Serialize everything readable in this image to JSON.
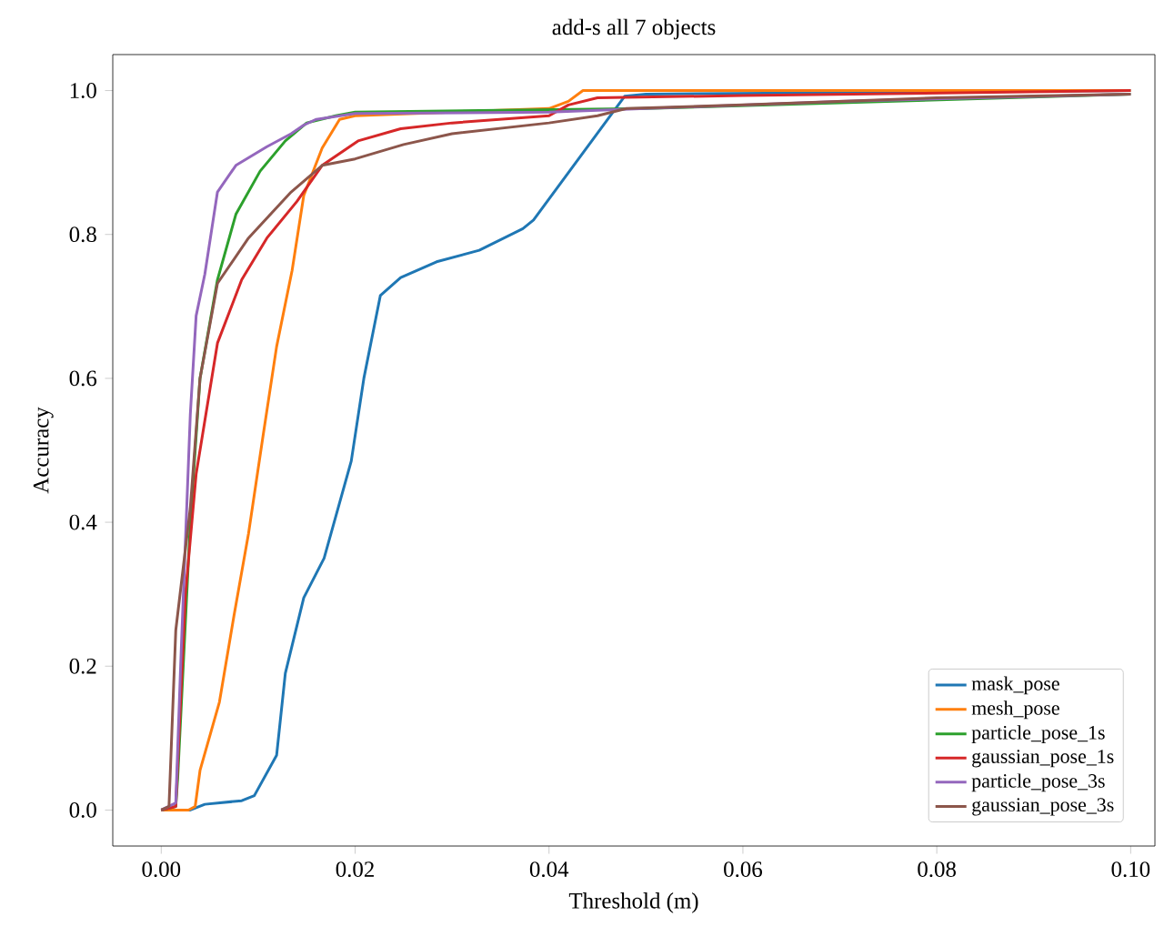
{
  "chart_data": {
    "type": "line",
    "title": "add-s all 7 objects",
    "xlabel": "Threshold (m)",
    "ylabel": "Accuracy",
    "xlim": [
      -0.005,
      0.1025
    ],
    "ylim": [
      -0.05,
      1.05
    ],
    "xticks": [
      {
        "value": 0,
        "label": "0.00"
      },
      {
        "value": 0.02,
        "label": "0.02"
      },
      {
        "value": 0.04,
        "label": "0.04"
      },
      {
        "value": 0.06,
        "label": "0.06"
      },
      {
        "value": 0.08,
        "label": "0.08"
      },
      {
        "value": 0.1,
        "label": "0.10"
      }
    ],
    "yticks": [
      {
        "value": 0,
        "label": "0.0"
      },
      {
        "value": 0.2,
        "label": "0.2"
      },
      {
        "value": 0.4,
        "label": "0.4"
      },
      {
        "value": 0.6,
        "label": "0.6"
      },
      {
        "value": 0.8,
        "label": "0.8"
      },
      {
        "value": 1,
        "label": "1.0"
      }
    ],
    "legend": "bottom right",
    "grid": false,
    "marker": "none",
    "line_style": "solid",
    "series": [
      {
        "name": "mask_pose",
        "color": "#1f77b4",
        "x": [
          0,
          0.003,
          0.0045,
          0.0083,
          0.0096,
          0.0119,
          0.0128,
          0.0147,
          0.0168,
          0.0196,
          0.0209,
          0.0226,
          0.0247,
          0.0284,
          0.0328,
          0.0373,
          0.0384,
          0.0478,
          0.05,
          0.07,
          0.1
        ],
        "values": [
          0,
          0,
          0.008,
          0.013,
          0.02,
          0.076,
          0.19,
          0.295,
          0.35,
          0.485,
          0.6,
          0.715,
          0.74,
          0.762,
          0.778,
          0.808,
          0.82,
          0.992,
          0.995,
          0.997,
          1.0
        ]
      },
      {
        "name": "mesh_pose",
        "color": "#ff7f0e",
        "x": [
          0,
          0.0028,
          0.0035,
          0.004,
          0.006,
          0.0075,
          0.009,
          0.0105,
          0.0119,
          0.0135,
          0.0147,
          0.0166,
          0.0184,
          0.02,
          0.04,
          0.042,
          0.0435,
          0.1
        ],
        "values": [
          0,
          0,
          0.005,
          0.055,
          0.15,
          0.27,
          0.384,
          0.52,
          0.644,
          0.75,
          0.854,
          0.92,
          0.96,
          0.965,
          0.975,
          0.985,
          1.0,
          1.0
        ]
      },
      {
        "name": "particle_pose_1s",
        "color": "#2ca02c",
        "x": [
          0,
          0.0015,
          0.0017,
          0.003,
          0.004,
          0.0058,
          0.0077,
          0.0102,
          0.0128,
          0.015,
          0.018,
          0.02,
          0.05,
          0.1
        ],
        "values": [
          0,
          0.005,
          0.045,
          0.4,
          0.6,
          0.737,
          0.828,
          0.888,
          0.93,
          0.955,
          0.965,
          0.97,
          0.975,
          0.995
        ]
      },
      {
        "name": "gaussian_pose_1s",
        "color": "#d62728",
        "x": [
          0,
          0.0015,
          0.0025,
          0.0036,
          0.0058,
          0.0083,
          0.0109,
          0.014,
          0.0166,
          0.0203,
          0.0247,
          0.03,
          0.04,
          0.042,
          0.045,
          0.06,
          0.1
        ],
        "values": [
          0,
          0.005,
          0.3,
          0.467,
          0.649,
          0.737,
          0.795,
          0.846,
          0.896,
          0.93,
          0.947,
          0.955,
          0.965,
          0.98,
          0.99,
          0.993,
          1.0
        ]
      },
      {
        "name": "particle_pose_3s",
        "color": "#9467bd",
        "x": [
          0,
          0.0015,
          0.002,
          0.003,
          0.0036,
          0.0045,
          0.0058,
          0.0077,
          0.0109,
          0.0134,
          0.0147,
          0.016,
          0.02,
          0.04,
          0.05,
          0.07,
          0.1
        ],
        "values": [
          0,
          0.01,
          0.2,
          0.55,
          0.687,
          0.745,
          0.859,
          0.896,
          0.922,
          0.94,
          0.952,
          0.96,
          0.968,
          0.97,
          0.975,
          0.985,
          0.995
        ]
      },
      {
        "name": "gaussian_pose_3s",
        "color": "#8c564b",
        "x": [
          0,
          0.0008,
          0.0015,
          0.003,
          0.004,
          0.0058,
          0.009,
          0.0134,
          0.0166,
          0.02,
          0.025,
          0.03,
          0.04,
          0.045,
          0.048,
          0.06,
          0.08,
          0.1
        ],
        "values": [
          0,
          0.005,
          0.25,
          0.42,
          0.6,
          0.732,
          0.795,
          0.859,
          0.896,
          0.905,
          0.925,
          0.94,
          0.955,
          0.965,
          0.975,
          0.98,
          0.99,
          0.995
        ]
      }
    ]
  }
}
